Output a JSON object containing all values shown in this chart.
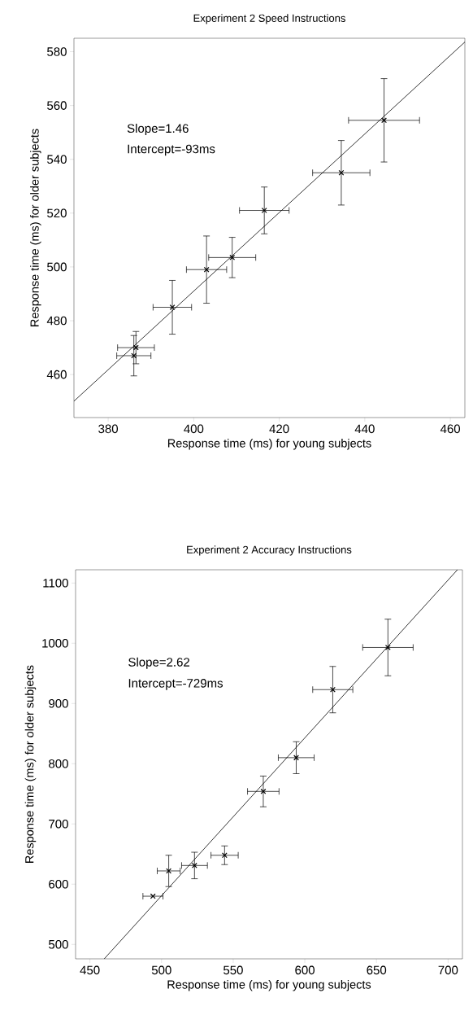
{
  "chart_data": [
    {
      "type": "scatter",
      "title": "Experiment 2 Speed Instructions",
      "xlabel": "Response time (ms) for young subjects",
      "ylabel": "Response time (ms) for older subjects",
      "xlim": [
        372,
        463.4
      ],
      "ylim": [
        444,
        585
      ],
      "xticks": [
        380,
        400,
        420,
        440,
        460
      ],
      "yticks": [
        460,
        480,
        500,
        520,
        540,
        560,
        580
      ],
      "annotations": [
        "Slope=1.46",
        "Intercept=-93ms"
      ],
      "series": [
        {
          "marker": "cross",
          "color": "#000000",
          "x": [
            386,
            386.5,
            395,
            403,
            409,
            416.5,
            434.5,
            444.5
          ],
          "values": [
            467,
            470,
            485,
            499,
            503.5,
            521,
            535,
            554.5
          ],
          "xerrors": [
            4,
            4.3,
            4.5,
            4.7,
            5.5,
            5.8,
            6.7,
            8.3
          ],
          "errors": [
            7.5,
            6,
            10,
            12.5,
            7.5,
            8.7,
            12,
            15.5
          ]
        },
        {
          "type": "line",
          "color": "#000000",
          "x": [
            372,
            463.4
          ],
          "values": [
            450.1,
            583.6
          ]
        }
      ]
    },
    {
      "type": "scatter",
      "title": "Experiment 2 Accuracy Instructions",
      "xlabel": "Response time (ms) for young subjects",
      "ylabel": "Response time (ms) for older subjects",
      "xlim": [
        440,
        710
      ],
      "ylim": [
        476,
        1122
      ],
      "xticks": [
        450,
        500,
        550,
        600,
        650,
        700
      ],
      "yticks": [
        500,
        600,
        700,
        800,
        900,
        1000,
        1100
      ],
      "annotations": [
        "Slope=2.62",
        "Intercept=-729ms"
      ],
      "series": [
        {
          "marker": "cross",
          "color": "#000000",
          "x": [
            494,
            505,
            523,
            544,
            571,
            594,
            619.5,
            658
          ],
          "values": [
            580,
            622,
            631,
            648,
            754,
            810,
            923,
            993
          ],
          "xerrors": [
            7,
            8,
            9,
            9.5,
            11,
            12.5,
            14,
            17.6
          ],
          "errors": [
            null,
            26,
            22,
            15.5,
            25.5,
            26.5,
            38.5,
            47
          ]
        },
        {
          "type": "line",
          "color": "#000000",
          "x": [
            460,
            706.5
          ],
          "values": [
            476,
            1122
          ]
        }
      ]
    }
  ]
}
